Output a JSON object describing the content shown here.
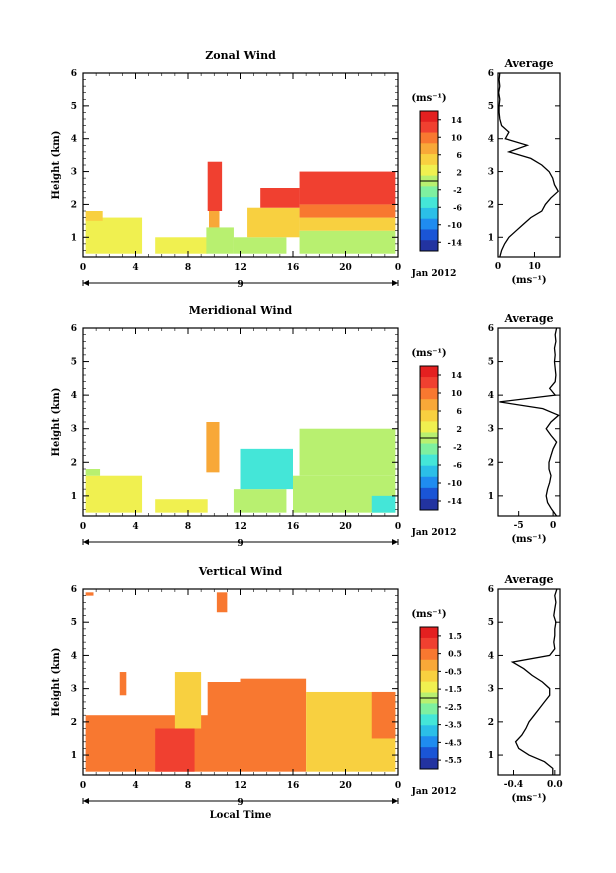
{
  "chart_data": [
    {
      "type": "heatmap",
      "title": "Zonal Wind",
      "ylabel": "Height (km)",
      "xticks": [
        "0",
        "4",
        "8",
        "12",
        "16",
        "20",
        "0"
      ],
      "xlim": [
        0,
        24
      ],
      "ylim": [
        0.4,
        6
      ],
      "yticks": [
        "1",
        "2",
        "3",
        "4",
        "5",
        "6"
      ],
      "date_day": "9",
      "date_label": "Jan 2012",
      "colorbar": {
        "unit": "(ms⁻¹)",
        "ticks": [
          "14",
          "10",
          "6",
          "2",
          "-2",
          "-6",
          "-10",
          "-14"
        ],
        "range": [
          -16,
          16
        ]
      },
      "regions": [
        {
          "x0": 0.2,
          "x1": 4.5,
          "y0": 0.5,
          "y1": 1.6,
          "value": 3
        },
        {
          "x0": 0.2,
          "x1": 1.5,
          "y0": 1.5,
          "y1": 1.8,
          "value": 5
        },
        {
          "x0": 5.5,
          "x1": 9.5,
          "y0": 0.5,
          "y1": 1.0,
          "value": 3
        },
        {
          "x0": 9.4,
          "x1": 11.5,
          "y0": 0.5,
          "y1": 1.3,
          "value": 1
        },
        {
          "x0": 9.5,
          "x1": 10.6,
          "y0": 1.8,
          "y1": 3.3,
          "value": 13
        },
        {
          "x0": 9.6,
          "x1": 10.4,
          "y0": 1.3,
          "y1": 1.8,
          "value": 8
        },
        {
          "x0": 11.5,
          "x1": 15.5,
          "y0": 0.5,
          "y1": 1.0,
          "value": 0
        },
        {
          "x0": 12.5,
          "x1": 16.5,
          "y0": 1.0,
          "y1": 1.9,
          "value": 4
        },
        {
          "x0": 13.5,
          "x1": 16.5,
          "y0": 1.9,
          "y1": 2.5,
          "value": 13
        },
        {
          "x0": 16.5,
          "x1": 23.8,
          "y0": 0.5,
          "y1": 1.2,
          "value": 1
        },
        {
          "x0": 16.5,
          "x1": 23.8,
          "y0": 1.2,
          "y1": 1.6,
          "value": 5
        },
        {
          "x0": 16.5,
          "x1": 23.8,
          "y0": 1.6,
          "y1": 2.0,
          "value": 9
        },
        {
          "x0": 16.5,
          "x1": 23.8,
          "y0": 2.0,
          "y1": 3.0,
          "value": 13
        }
      ],
      "average_profile": {
        "title": "Average",
        "xlim": [
          0,
          17
        ],
        "xticks": [
          "0",
          "10"
        ],
        "unit": "(ms⁻¹)",
        "height": [
          0.4,
          0.6,
          0.8,
          1.0,
          1.2,
          1.4,
          1.6,
          1.8,
          2.0,
          2.2,
          2.4,
          2.6,
          2.8,
          3.0,
          3.2,
          3.4,
          3.6,
          3.8,
          4.0,
          4.2,
          4.4,
          4.6,
          4.8,
          5.0,
          5.2,
          5.4,
          5.6,
          5.8,
          6.0
        ],
        "value": [
          0.5,
          1.0,
          1.8,
          3,
          5,
          7,
          9,
          12,
          13,
          14.5,
          16.5,
          15.5,
          15,
          14,
          12,
          9,
          3,
          8,
          2,
          3,
          1,
          0.5,
          0.3,
          0.3,
          0.5,
          0.2,
          0.5,
          0.3,
          0.5
        ]
      }
    },
    {
      "type": "heatmap",
      "title": "Meridional Wind",
      "ylabel": "Height (km)",
      "xticks": [
        "0",
        "4",
        "8",
        "12",
        "16",
        "20",
        "0"
      ],
      "xlim": [
        0,
        24
      ],
      "ylim": [
        0.4,
        6
      ],
      "yticks": [
        "1",
        "2",
        "3",
        "4",
        "5",
        "6"
      ],
      "date_day": "9",
      "date_label": "Jan 2012",
      "colorbar": {
        "unit": "(ms⁻¹)",
        "ticks": [
          "14",
          "10",
          "6",
          "2",
          "-2",
          "-6",
          "-10",
          "-14"
        ],
        "range": [
          -16,
          16
        ]
      },
      "regions": [
        {
          "x0": 0.2,
          "x1": 4.5,
          "y0": 0.5,
          "y1": 1.6,
          "value": 2
        },
        {
          "x0": 0.2,
          "x1": 1.3,
          "y0": 1.6,
          "y1": 1.8,
          "value": 0
        },
        {
          "x0": 5.5,
          "x1": 9.5,
          "y0": 0.5,
          "y1": 0.9,
          "value": 2
        },
        {
          "x0": 9.4,
          "x1": 10.4,
          "y0": 1.7,
          "y1": 3.2,
          "value": 7
        },
        {
          "x0": 11.5,
          "x1": 15.5,
          "y0": 0.5,
          "y1": 1.2,
          "value": 1
        },
        {
          "x0": 12.0,
          "x1": 16.0,
          "y0": 1.2,
          "y1": 2.4,
          "value": -4
        },
        {
          "x0": 16.0,
          "x1": 23.8,
          "y0": 0.5,
          "y1": 1.6,
          "value": -1
        },
        {
          "x0": 16.5,
          "x1": 23.8,
          "y0": 1.6,
          "y1": 3.0,
          "value": 1
        },
        {
          "x0": 22.0,
          "x1": 23.8,
          "y0": 0.5,
          "y1": 1.0,
          "value": -6
        }
      ],
      "average_profile": {
        "title": "Average",
        "xlim": [
          -8,
          1
        ],
        "xticks": [
          "-5",
          "0"
        ],
        "unit": "(ms⁻¹)",
        "height": [
          0.4,
          0.6,
          0.8,
          1.0,
          1.2,
          1.4,
          1.6,
          1.8,
          2.0,
          2.2,
          2.4,
          2.6,
          2.8,
          3.0,
          3.2,
          3.4,
          3.6,
          3.8,
          4.0,
          4.2,
          4.4,
          4.6,
          4.8,
          5.0,
          5.2,
          5.4,
          5.6,
          5.8,
          6.0
        ],
        "value": [
          0.5,
          -0.2,
          -0.8,
          -1,
          -0.8,
          -0.5,
          -0.3,
          -0.6,
          -0.6,
          -0.3,
          0,
          0.5,
          -0.3,
          -1,
          -0.3,
          0.8,
          -1.5,
          -7.8,
          0.3,
          -0.5,
          0.3,
          0.4,
          0.3,
          0.2,
          0.3,
          0.2,
          0.4,
          0.3,
          0.5
        ]
      }
    },
    {
      "type": "heatmap",
      "title": "Vertical Wind",
      "ylabel": "Height (km)",
      "xlabel": "Local Time",
      "xticks": [
        "0",
        "4",
        "8",
        "12",
        "16",
        "20",
        "0"
      ],
      "xlim": [
        0,
        24
      ],
      "ylim": [
        0.4,
        6
      ],
      "yticks": [
        "1",
        "2",
        "3",
        "4",
        "5",
        "6"
      ],
      "date_day": "9",
      "date_label": "Jan 2012",
      "colorbar": {
        "unit": "(ms⁻¹)",
        "ticks": [
          "1.5",
          "0.5",
          "-0.5",
          "-1.5",
          "-2.5",
          "-3.5",
          "-4.5",
          "-5.5"
        ],
        "range": [
          -6,
          2
        ]
      },
      "regions": [
        {
          "x0": 0.2,
          "x1": 12.0,
          "y0": 0.5,
          "y1": 2.2,
          "value": 0.3
        },
        {
          "x0": 5.5,
          "x1": 8.5,
          "y0": 0.5,
          "y1": 1.8,
          "value": 0.8
        },
        {
          "x0": 7.0,
          "x1": 9.0,
          "y0": 1.8,
          "y1": 3.5,
          "value": -0.8
        },
        {
          "x0": 9.5,
          "x1": 12.0,
          "y0": 1.2,
          "y1": 3.2,
          "value": 0.2
        },
        {
          "x0": 12.0,
          "x1": 17.0,
          "y0": 0.5,
          "y1": 3.3,
          "value": 0.4
        },
        {
          "x0": 17.0,
          "x1": 23.8,
          "y0": 0.5,
          "y1": 2.9,
          "value": -0.9
        },
        {
          "x0": 22.0,
          "x1": 23.8,
          "y0": 1.5,
          "y1": 2.9,
          "value": 0.5
        },
        {
          "x0": 0.2,
          "x1": 0.8,
          "y0": 5.8,
          "y1": 5.9,
          "value": 0.5
        },
        {
          "x0": 2.8,
          "x1": 3.3,
          "y0": 2.8,
          "y1": 3.5,
          "value": 0.3
        },
        {
          "x0": 10.2,
          "x1": 11.0,
          "y0": 5.3,
          "y1": 5.9,
          "value": 0.3
        }
      ],
      "average_profile": {
        "title": "Average",
        "xlim": [
          -0.55,
          0.05
        ],
        "xticks": [
          "-0.4",
          "0.0"
        ],
        "unit": "(ms⁻¹)",
        "height": [
          0.4,
          0.6,
          0.8,
          1.0,
          1.2,
          1.4,
          1.6,
          1.8,
          2.0,
          2.2,
          2.4,
          2.6,
          2.8,
          3.0,
          3.2,
          3.4,
          3.6,
          3.8,
          4.0,
          4.2,
          4.4,
          4.6,
          4.8,
          5.0,
          5.2,
          5.4,
          5.6,
          5.8,
          6.0
        ],
        "value": [
          -0.02,
          -0.02,
          -0.1,
          -0.25,
          -0.35,
          -0.38,
          -0.32,
          -0.28,
          -0.25,
          -0.2,
          -0.15,
          -0.1,
          -0.05,
          -0.05,
          -0.12,
          -0.22,
          -0.3,
          -0.41,
          -0.05,
          0.0,
          -0.01,
          0.0,
          0.0,
          0.01,
          -0.01,
          0.0,
          0.01,
          0.0,
          0.02
        ]
      }
    }
  ]
}
